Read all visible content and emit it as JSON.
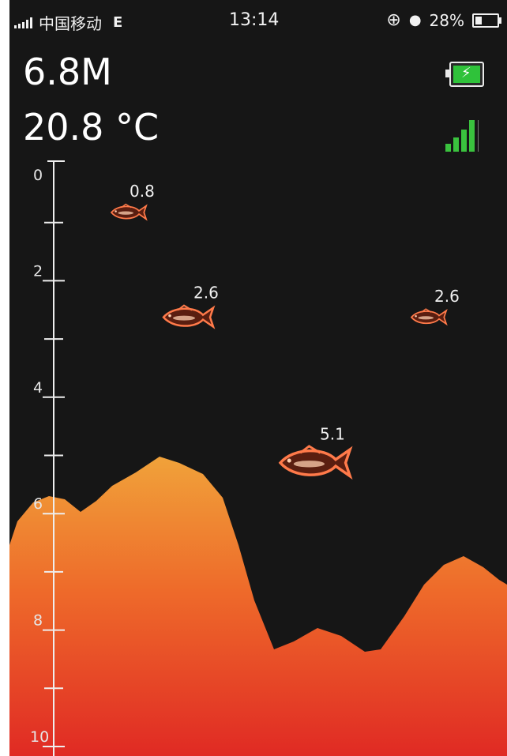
{
  "status_bar": {
    "carrier": "中国移动",
    "network": "E",
    "time": "13:14",
    "battery_percent": "28%"
  },
  "readouts": {
    "depth": "6.8M",
    "temperature": "20.8 °C"
  },
  "device": {
    "battery_icon": "battery-charging-icon",
    "signal_icon": "signal-strength-icon",
    "battery_color": "#2fc23a",
    "signal_color": "#3ac23e"
  },
  "depth_scale": {
    "labels": [
      "0",
      "2",
      "4",
      "6",
      "8",
      "10"
    ],
    "min": 0,
    "max": 10
  },
  "fish": [
    {
      "depth_label": "0.8",
      "depth": 0.8,
      "size": "small"
    },
    {
      "depth_label": "2.6",
      "depth": 2.6,
      "size": "medium"
    },
    {
      "depth_label": "2.6",
      "depth": 2.6,
      "size": "small"
    },
    {
      "depth_label": "5.1",
      "depth": 5.1,
      "size": "large"
    }
  ],
  "sonar_colors": {
    "background": "#161616",
    "bottom_top": "#f0a23a",
    "bottom_mid": "#ee6a2a",
    "bottom_deep": "#e02a24"
  }
}
